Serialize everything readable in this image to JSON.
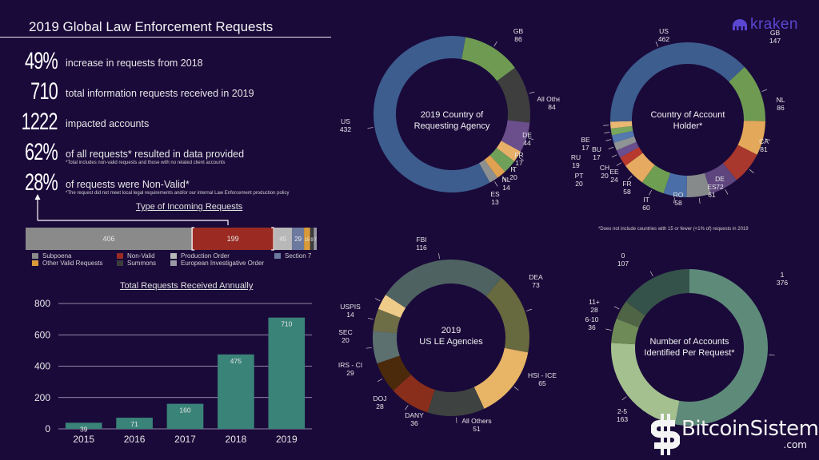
{
  "header": {
    "title": "2019 Global Law Enforcement Requests"
  },
  "brand": {
    "name": "kraken",
    "color": "#5a46d0"
  },
  "stats": [
    {
      "value": "49%",
      "text": "increase in requests from 2018",
      "note": ""
    },
    {
      "value": "710",
      "text": "total information requests received in 2019",
      "note": ""
    },
    {
      "value": "1222",
      "text": "impacted accounts",
      "note": ""
    },
    {
      "value": "62%",
      "text": "of all requests* resulted in data provided",
      "note": "*Total includes non-valid requests and those with no related client accounts"
    },
    {
      "value": "28%",
      "text": "of requests were Non-Valid*",
      "note": "*The request did not meet local legal requirements and/or our internal Law Enforcement production policy"
    }
  ],
  "footnote": "*Does not include countries with 15 or fewer (<1% of) requests in 2019",
  "watermark": {
    "text": "BitcoinSistemi",
    "suffix": ".com"
  },
  "chart_data": [
    {
      "type": "bar",
      "orientation": "horizontal-stacked",
      "title": "Type of Incoming Requests",
      "categories": [
        "Subpoena",
        "Non-Valid",
        "Production Order",
        "Section 7",
        "Other Valid Requests",
        "Summons",
        "European Investigative Order"
      ],
      "values": [
        406,
        199,
        45,
        29,
        15,
        9,
        7
      ],
      "labels": [
        "406",
        "199",
        "45",
        "29",
        "15",
        "9",
        "7"
      ],
      "colors": [
        "#8a8a8a",
        "#9a2a22",
        "#b8b8b8",
        "#6c7aa0",
        "#d99a3a",
        "#3c3c3c",
        "#9a9aa6"
      ],
      "highlight": "Non-Valid",
      "legend": [
        {
          "label": "Subpoena",
          "color": "#8a8a8a"
        },
        {
          "label": "Other Valid Requests",
          "color": "#d99a3a"
        },
        {
          "label": "Non-Valid",
          "color": "#9a2a22"
        },
        {
          "label": "Summons",
          "color": "#3c3c3c"
        },
        {
          "label": "Production Order",
          "color": "#b8b8b8"
        },
        {
          "label": "European Investigative Order",
          "color": "#9a9aa6"
        },
        {
          "label": "Section 7",
          "color": "#6c7aa0"
        }
      ]
    },
    {
      "type": "bar",
      "title": "Total Requests Received Annually",
      "categories": [
        "2015",
        "2016",
        "2017",
        "2018",
        "2019"
      ],
      "values": [
        39,
        71,
        160,
        475,
        710
      ],
      "ylim": [
        0,
        800
      ],
      "yticks": [
        0,
        200,
        400,
        600,
        800
      ],
      "grid": true,
      "color": "#3a8378",
      "xlabel": "",
      "ylabel": ""
    },
    {
      "type": "pie",
      "variant": "donut",
      "title": "2019  Country of Requesting Agency",
      "slices": [
        {
          "label": "GB",
          "value": 86,
          "color": "#6e9a52"
        },
        {
          "label": "All Others",
          "value": 84,
          "color": "#3e3e3e"
        },
        {
          "label": "DE",
          "value": 44,
          "color": "#6b4e8c"
        },
        {
          "label": "FR",
          "value": 17,
          "color": "#e6b068"
        },
        {
          "label": "IT",
          "value": 20,
          "color": "#6ea05a"
        },
        {
          "label": "NL",
          "value": 14,
          "color": "#e0a250"
        },
        {
          "label": "ES",
          "value": 13,
          "color": "#8c9090"
        },
        {
          "label": "US",
          "value": 432,
          "color": "#3c5d8e"
        }
      ]
    },
    {
      "type": "pie",
      "variant": "donut",
      "title": "Country of Account Holder*",
      "slices": [
        {
          "label": "GB",
          "value": 147,
          "color": "#6e9a52"
        },
        {
          "label": "NL",
          "value": 86,
          "color": "#e3a85a"
        },
        {
          "label": "CA",
          "value": 81,
          "color": "#a8372e"
        },
        {
          "label": "DE",
          "value": 72,
          "color": "#5e457e"
        },
        {
          "label": "ES",
          "value": 61,
          "color": "#868a8a"
        },
        {
          "label": "RO",
          "value": 58,
          "color": "#4a6ea8"
        },
        {
          "label": "IT",
          "value": 60,
          "color": "#6e9e52"
        },
        {
          "label": "FR",
          "value": 58,
          "color": "#e6aa60"
        },
        {
          "label": "EE",
          "value": 24,
          "color": "#b8392e"
        },
        {
          "label": "CH",
          "value": 20,
          "color": "#6a4f8e"
        },
        {
          "label": "PT",
          "value": 20,
          "color": "#8e9494"
        },
        {
          "label": "RU",
          "value": 19,
          "color": "#5478b0"
        },
        {
          "label": "BU",
          "value": 17,
          "color": "#79a65c"
        },
        {
          "label": "BE",
          "value": 17,
          "color": "#eab872"
        },
        {
          "label": "US",
          "value": 462,
          "color": "#3c5d8e"
        }
      ]
    },
    {
      "type": "pie",
      "variant": "donut",
      "title": "2019 US LE Agencies",
      "slices": [
        {
          "label": "DEA",
          "value": 73,
          "color": "#67693e"
        },
        {
          "label": "HSI - ICE",
          "value": 65,
          "color": "#e8b466"
        },
        {
          "label": "All Others",
          "value": 51,
          "color": "#3e4240"
        },
        {
          "label": "DANY",
          "value": 36,
          "color": "#8a2e1c"
        },
        {
          "label": "DOJ",
          "value": 28,
          "color": "#4a2a0a"
        },
        {
          "label": "IRS - CI",
          "value": 29,
          "color": "#5c7070"
        },
        {
          "label": "SEC",
          "value": 20,
          "color": "#6e6e46"
        },
        {
          "label": "USPIS",
          "value": 14,
          "color": "#eecb88"
        },
        {
          "label": "FBI",
          "value": 116,
          "color": "#4e6262"
        }
      ]
    },
    {
      "type": "pie",
      "variant": "donut",
      "title": "Number of Accounts Identified Per Request*",
      "slices": [
        {
          "label": "1",
          "value": 376,
          "color": "#5e8a7a"
        },
        {
          "label": "2-5",
          "value": 163,
          "color": "#a4c08e"
        },
        {
          "label": "6-10",
          "value": 36,
          "color": "#6e8a56"
        },
        {
          "label": "11+",
          "value": 28,
          "color": "#4e6444"
        },
        {
          "label": "0",
          "value": 107,
          "color": "#35524a"
        }
      ]
    }
  ]
}
